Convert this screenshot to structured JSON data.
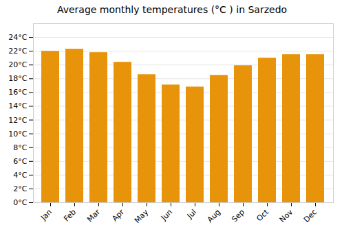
{
  "chart_data": {
    "type": "bar",
    "title": "Average monthly temperatures (°C ) in Sarzedo",
    "categories": [
      "Jan",
      "Feb",
      "Mar",
      "Apr",
      "May",
      "Jun",
      "Jul",
      "Aug",
      "Sep",
      "Oct",
      "Nov",
      "Dec"
    ],
    "values": [
      22.0,
      22.3,
      21.8,
      20.4,
      18.6,
      17.1,
      16.8,
      18.5,
      19.9,
      21.0,
      21.5,
      21.5
    ],
    "color": "#E8940A",
    "ylim": [
      0,
      26
    ],
    "yticks": [
      {
        "value": 0,
        "label": "0°C"
      },
      {
        "value": 2,
        "label": "2°C"
      },
      {
        "value": 4,
        "label": "4°C"
      },
      {
        "value": 6,
        "label": "6°C"
      },
      {
        "value": 8,
        "label": "8°C"
      },
      {
        "value": 10,
        "label": "10°C"
      },
      {
        "value": 12,
        "label": "12°C"
      },
      {
        "value": 14,
        "label": "14°C"
      },
      {
        "value": 16,
        "label": "16°C"
      },
      {
        "value": 18,
        "label": "18°C"
      },
      {
        "value": 20,
        "label": "20°C"
      },
      {
        "value": 22,
        "label": "22°C"
      },
      {
        "value": 24,
        "label": "24°C"
      }
    ],
    "grid": true
  }
}
